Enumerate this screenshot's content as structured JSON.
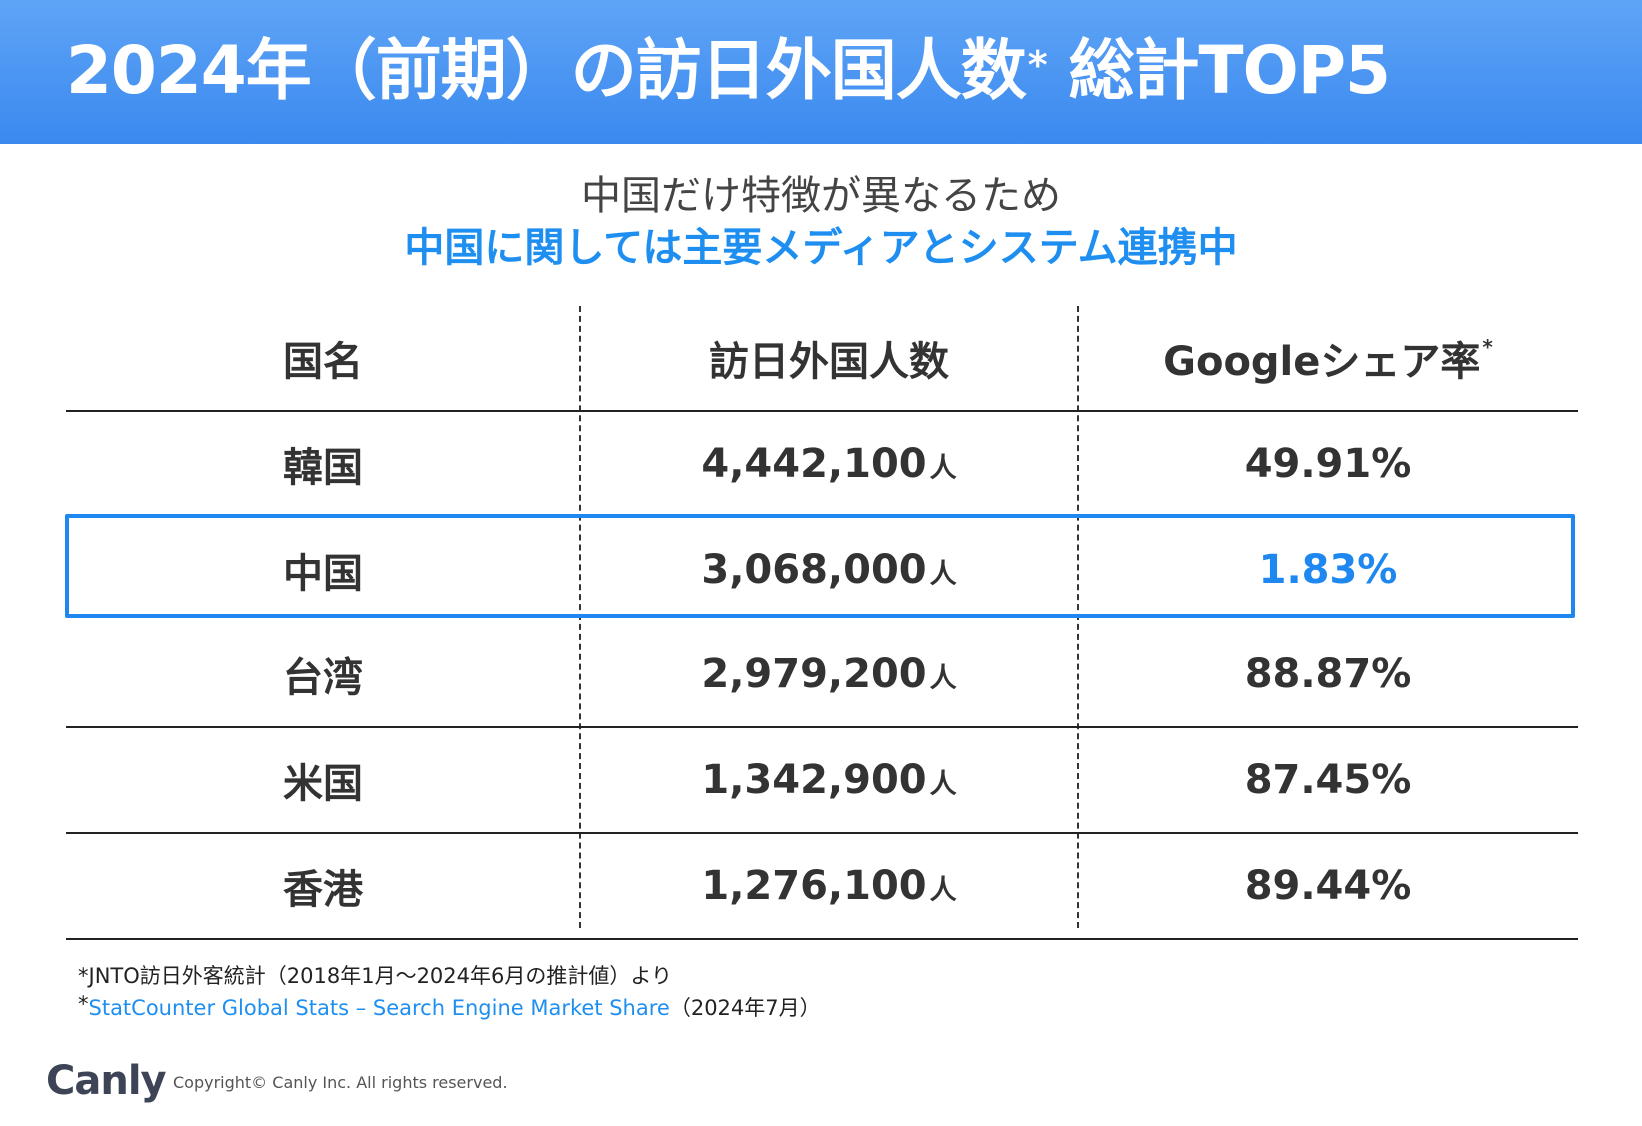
{
  "header": {
    "title": "2024年（前期）の訪日外国人数",
    "title_mark": "*",
    "title_tail": "総計TOP5"
  },
  "subtitle": {
    "line1": "中国だけ特徴が異なるため",
    "line2": "中国に関しては主要メディアとシステム連携中"
  },
  "table": {
    "columns": [
      "国名",
      "訪日外国人数",
      "Googleシェア率"
    ],
    "column_mark": "*",
    "unit": "人",
    "rows": [
      {
        "country": "韓国",
        "visitors": "4,442,100",
        "share": "49.91%"
      },
      {
        "country": "中国",
        "visitors": "3,068,000",
        "share": "1.83%"
      },
      {
        "country": "台湾",
        "visitors": "2,979,200",
        "share": "88.87%"
      },
      {
        "country": "米国",
        "visitors": "1,342,900",
        "share": "87.45%"
      },
      {
        "country": "香港",
        "visitors": "1,276,100",
        "share": "89.44%"
      }
    ],
    "highlight_color": "#1e88f0"
  },
  "notes": {
    "note1": "*JNTO訪日外客統計（2018年1月〜2024年6月の推計値）より",
    "note2_mark": "*",
    "note2_link": "StatCounter Global Stats – Search Engine Market Share",
    "note2_tail": "（2024年7月）"
  },
  "footer": {
    "logo": "Canly",
    "copyright": "Copyright© Canly Inc. All rights reserved."
  }
}
